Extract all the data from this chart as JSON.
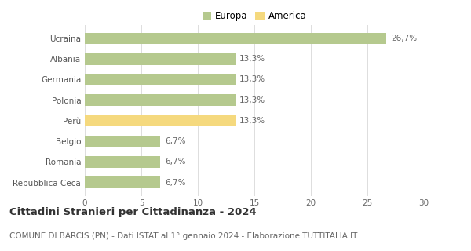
{
  "categories": [
    "Repubblica Ceca",
    "Romania",
    "Belgio",
    "Perù",
    "Polonia",
    "Germania",
    "Albania",
    "Ucraina"
  ],
  "values": [
    6.7,
    6.7,
    6.7,
    13.3,
    13.3,
    13.3,
    13.3,
    26.7
  ],
  "bar_colors": [
    "#b5c98e",
    "#b5c98e",
    "#b5c98e",
    "#f5d97e",
    "#b5c98e",
    "#b5c98e",
    "#b5c98e",
    "#b5c98e"
  ],
  "value_labels": [
    "6,7%",
    "6,7%",
    "6,7%",
    "13,3%",
    "13,3%",
    "13,3%",
    "13,3%",
    "26,7%"
  ],
  "legend_labels": [
    "Europa",
    "America"
  ],
  "legend_colors": [
    "#b5c98e",
    "#f5d97e"
  ],
  "title": "Cittadini Stranieri per Cittadinanza - 2024",
  "subtitle": "COMUNE DI BARCIS (PN) - Dati ISTAT al 1° gennaio 2024 - Elaborazione TUTTITALIA.IT",
  "xlim": [
    0,
    30
  ],
  "xticks": [
    0,
    5,
    10,
    15,
    20,
    25,
    30
  ],
  "background_color": "#ffffff",
  "bar_height": 0.55,
  "title_fontsize": 9.5,
  "subtitle_fontsize": 7.5,
  "label_fontsize": 7.5,
  "tick_fontsize": 7.5,
  "value_label_fontsize": 7.5,
  "legend_fontsize": 8.5
}
